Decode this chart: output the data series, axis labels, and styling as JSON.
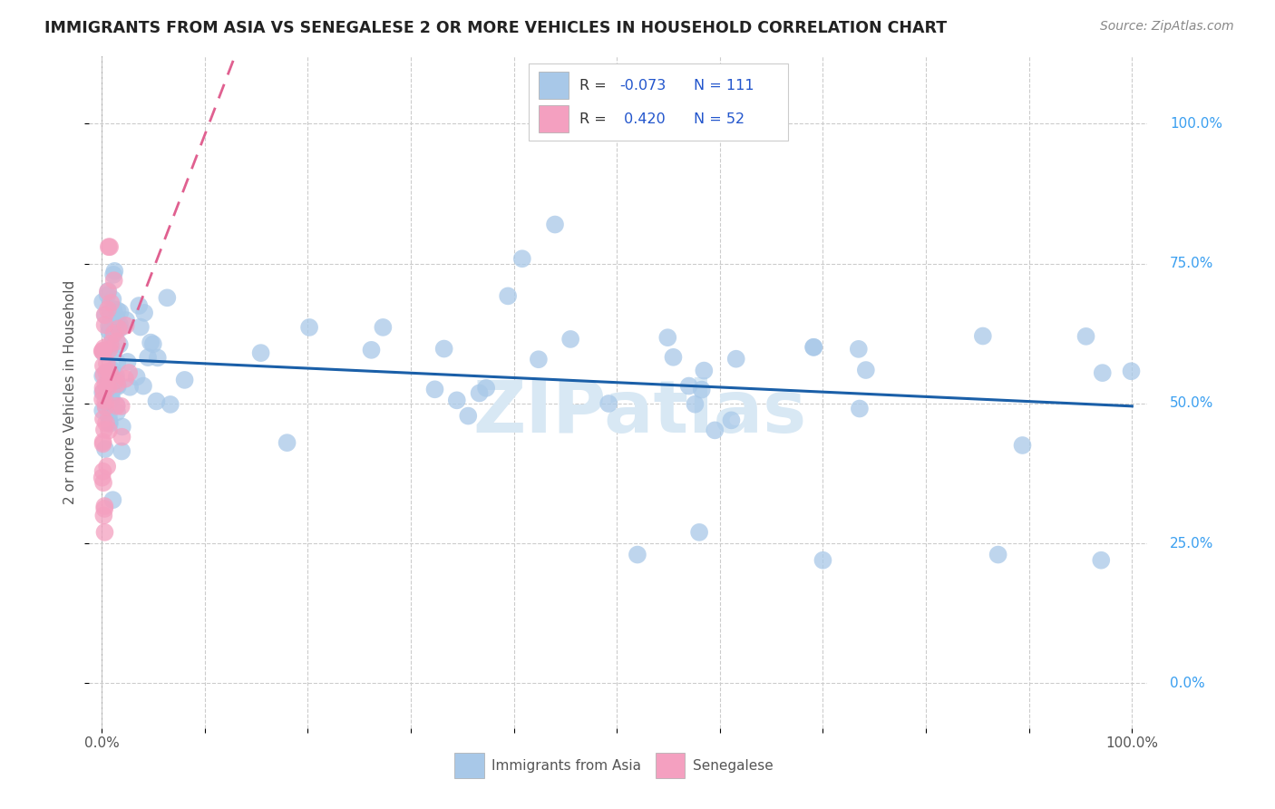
{
  "title": "IMMIGRANTS FROM ASIA VS SENEGALESE 2 OR MORE VEHICLES IN HOUSEHOLD CORRELATION CHART",
  "source": "Source: ZipAtlas.com",
  "ylabel": "2 or more Vehicles in Household",
  "ytick_labels": [
    "0.0%",
    "25.0%",
    "50.0%",
    "75.0%",
    "100.0%"
  ],
  "ytick_values": [
    0.0,
    0.25,
    0.5,
    0.75,
    1.0
  ],
  "legend_label1": "Immigrants from Asia",
  "legend_label2": "Senegalese",
  "color_asia": "#a8c8e8",
  "color_senegalese": "#f4a0c0",
  "trendline_color_asia": "#1a5fa8",
  "trendline_color_senegalese": "#e06090",
  "background_color": "#ffffff",
  "watermark": "ZIPatlas",
  "xlim": [
    0.0,
    1.0
  ],
  "ylim": [
    -0.08,
    1.12
  ]
}
